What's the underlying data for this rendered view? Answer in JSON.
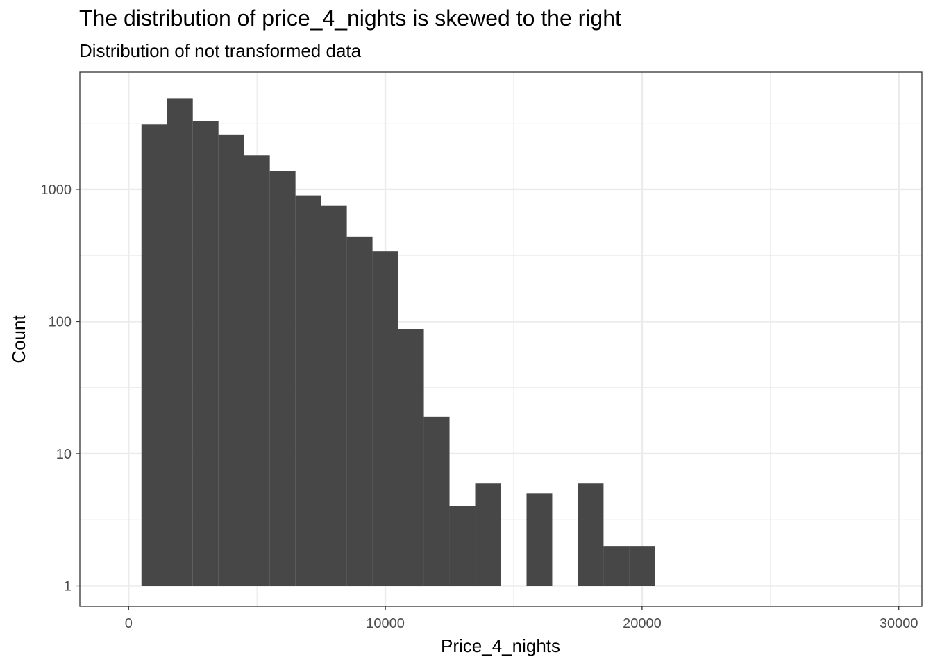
{
  "chart_data": {
    "type": "bar",
    "title": "The distribution of price_4_nights is skewed to the right",
    "subtitle": "Distribution of not transformed data",
    "xlabel": "Price_4_nights",
    "ylabel": "Count",
    "x_scale": "linear",
    "y_scale": "log10",
    "xlim": [
      -1900,
      30900
    ],
    "ylim": [
      0.7,
      7700
    ],
    "x_ticks": [
      0,
      10000,
      20000,
      30000
    ],
    "x_tick_labels": [
      "0",
      "10000",
      "20000",
      "30000"
    ],
    "y_ticks": [
      1,
      10,
      100,
      1000
    ],
    "y_tick_labels": [
      "1",
      "10",
      "100",
      "1000"
    ],
    "grid": true,
    "bar_color": "#474747",
    "bins": [
      {
        "x0": 500,
        "x1": 1500,
        "count": 3100
      },
      {
        "x0": 1500,
        "x1": 2500,
        "count": 4900
      },
      {
        "x0": 2500,
        "x1": 3500,
        "count": 3300
      },
      {
        "x0": 3500,
        "x1": 4500,
        "count": 2600
      },
      {
        "x0": 4500,
        "x1": 5500,
        "count": 1800
      },
      {
        "x0": 5500,
        "x1": 6500,
        "count": 1370
      },
      {
        "x0": 6500,
        "x1": 7500,
        "count": 900
      },
      {
        "x0": 7500,
        "x1": 8500,
        "count": 750
      },
      {
        "x0": 8500,
        "x1": 9500,
        "count": 440
      },
      {
        "x0": 9500,
        "x1": 10500,
        "count": 340
      },
      {
        "x0": 10500,
        "x1": 11500,
        "count": 88
      },
      {
        "x0": 11500,
        "x1": 12500,
        "count": 19
      },
      {
        "x0": 12500,
        "x1": 13500,
        "count": 4
      },
      {
        "x0": 13500,
        "x1": 14500,
        "count": 6
      },
      {
        "x0": 14500,
        "x1": 15500,
        "count": 1
      },
      {
        "x0": 15500,
        "x1": 16500,
        "count": 5
      },
      {
        "x0": 16500,
        "x1": 17500,
        "count": 1
      },
      {
        "x0": 17500,
        "x1": 18500,
        "count": 6
      },
      {
        "x0": 18500,
        "x1": 19500,
        "count": 2
      },
      {
        "x0": 19500,
        "x1": 20500,
        "count": 2
      }
    ]
  }
}
